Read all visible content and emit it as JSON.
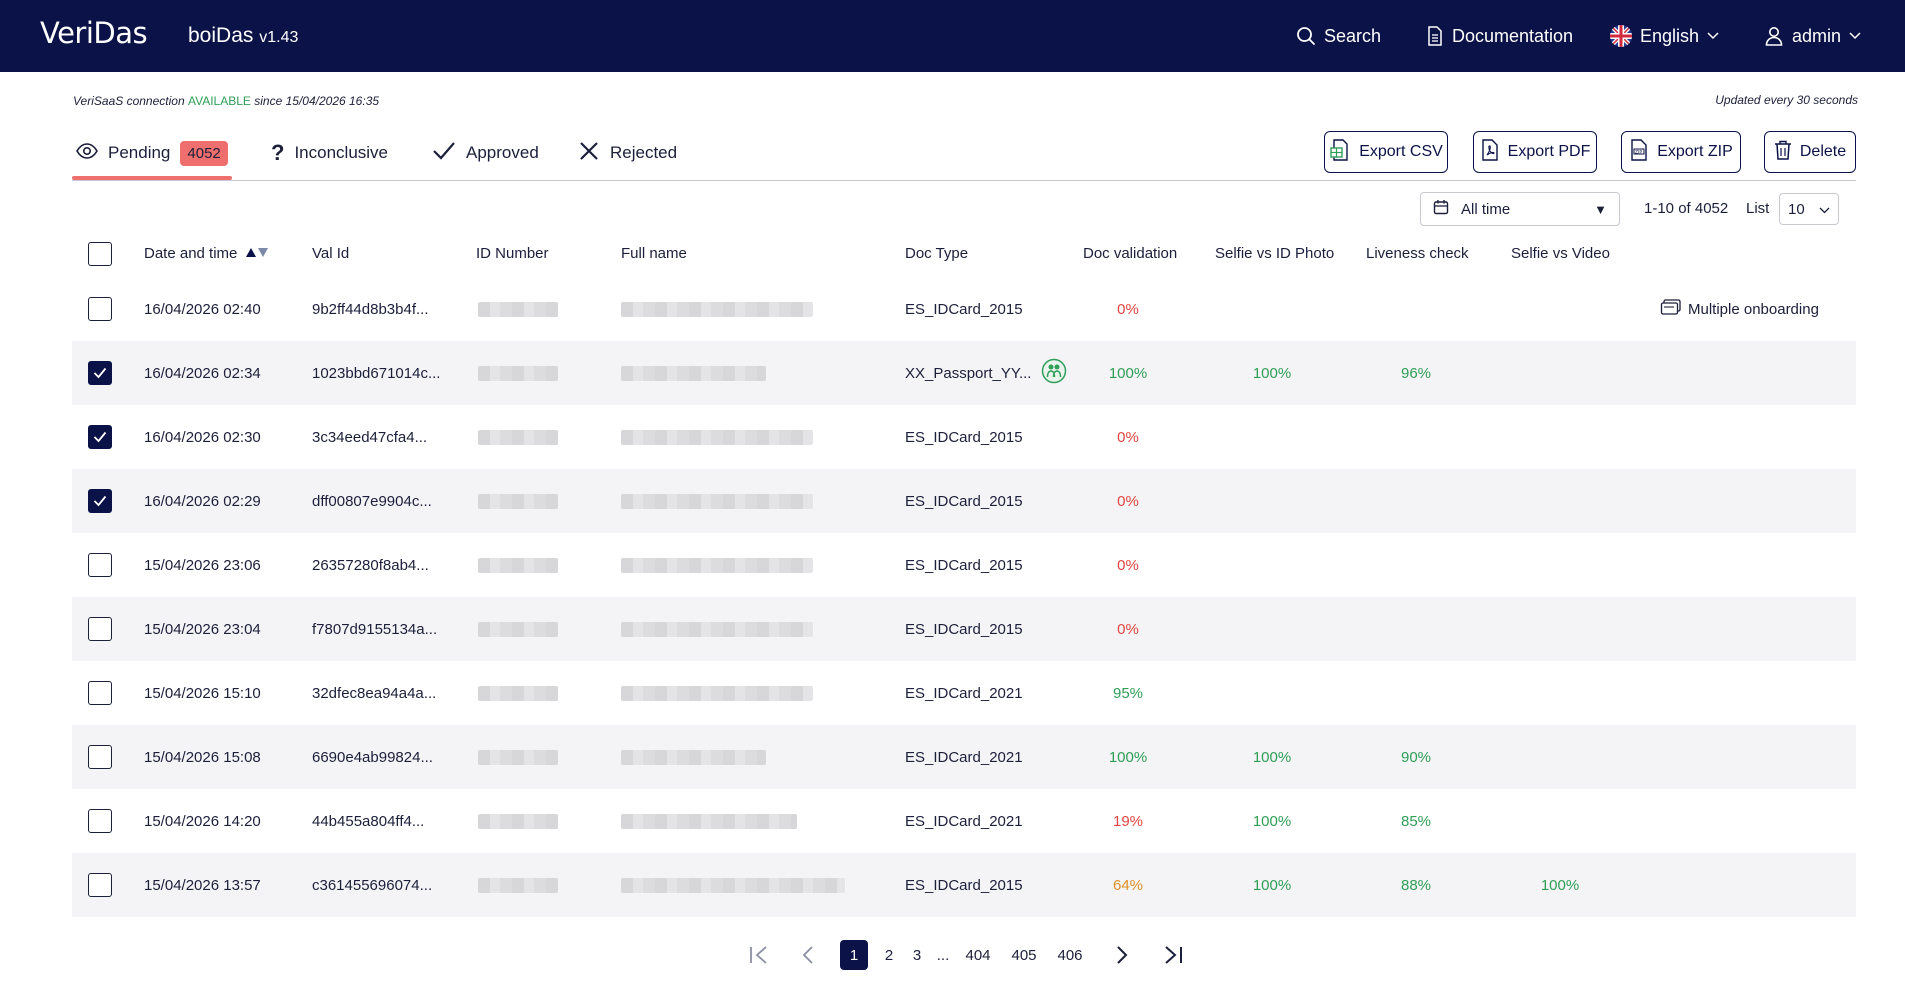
{
  "header": {
    "logo": "VeriDas",
    "app_name": "boiDas",
    "app_version": "v1.43",
    "nav": {
      "search": "Search",
      "documentation": "Documentation",
      "language": "English",
      "user": "admin"
    }
  },
  "status": {
    "prefix": "VeriSaaS connection",
    "state": "AVAILABLE",
    "since": "since 15/04/2026 16:35",
    "updated": "Updated every 30 seconds"
  },
  "tabs": [
    {
      "label": "Pending",
      "count": "4052",
      "icon": "eye-icon",
      "active": true
    },
    {
      "label": "Inconclusive",
      "icon": "question-icon"
    },
    {
      "label": "Approved",
      "icon": "check-icon"
    },
    {
      "label": "Rejected",
      "icon": "x-icon"
    }
  ],
  "actions": {
    "export_csv": "Export CSV",
    "export_pdf": "Export PDF",
    "export_zip": "Export ZIP",
    "delete": "Delete"
  },
  "filter": {
    "date_range": "All time",
    "range_text": "1-10 of 4052",
    "list_label": "List",
    "list_size": "10"
  },
  "columns": {
    "date": "Date and time",
    "val_id": "Val Id",
    "id_number": "ID Number",
    "full_name": "Full name",
    "doc_type": "Doc Type",
    "doc_validation": "Doc validation",
    "selfie_id": "Selfie vs ID Photo",
    "liveness": "Liveness check",
    "selfie_video": "Selfie vs Video"
  },
  "rows": [
    {
      "checked": false,
      "date": "16/04/2026 02:40",
      "val_id": "9b2ff44d8b3b4f...",
      "doc_type": "ES_IDCard_2015",
      "doc_validation": "0%",
      "selfie_id": "",
      "liveness": "",
      "selfie_video": "",
      "extra": "Multiple onboarding"
    },
    {
      "checked": true,
      "date": "16/04/2026 02:34",
      "val_id": "1023bbd671014c...",
      "doc_type": "XX_Passport_YY...",
      "doc_validation": "100%",
      "selfie_id": "100%",
      "liveness": "96%",
      "selfie_video": "",
      "extra": ""
    },
    {
      "checked": true,
      "date": "16/04/2026 02:30",
      "val_id": "3c34eed47cfa4...",
      "doc_type": "ES_IDCard_2015",
      "doc_validation": "0%",
      "selfie_id": "",
      "liveness": "",
      "selfie_video": "",
      "extra": ""
    },
    {
      "checked": true,
      "date": "16/04/2026 02:29",
      "val_id": "dff00807e9904c...",
      "doc_type": "ES_IDCard_2015",
      "doc_validation": "0%",
      "selfie_id": "",
      "liveness": "",
      "selfie_video": "",
      "extra": ""
    },
    {
      "checked": false,
      "date": "15/04/2026 23:06",
      "val_id": "26357280f8ab4...",
      "doc_type": "ES_IDCard_2015",
      "doc_validation": "0%",
      "selfie_id": "",
      "liveness": "",
      "selfie_video": "",
      "extra": ""
    },
    {
      "checked": false,
      "date": "15/04/2026 23:04",
      "val_id": "f7807d9155134a...",
      "doc_type": "ES_IDCard_2015",
      "doc_validation": "0%",
      "selfie_id": "",
      "liveness": "",
      "selfie_video": "",
      "extra": ""
    },
    {
      "checked": false,
      "date": "15/04/2026 15:10",
      "val_id": "32dfec8ea94a4a...",
      "doc_type": "ES_IDCard_2021",
      "doc_validation": "95%",
      "selfie_id": "",
      "liveness": "",
      "selfie_video": "",
      "extra": ""
    },
    {
      "checked": false,
      "date": "15/04/2026 15:08",
      "val_id": "6690e4ab99824...",
      "doc_type": "ES_IDCard_2021",
      "doc_validation": "100%",
      "selfie_id": "100%",
      "liveness": "90%",
      "selfie_video": "",
      "extra": ""
    },
    {
      "checked": false,
      "date": "15/04/2026 14:20",
      "val_id": "44b455a804ff4...",
      "doc_type": "ES_IDCard_2021",
      "doc_validation": "19%",
      "selfie_id": "100%",
      "liveness": "85%",
      "selfie_video": "",
      "extra": ""
    },
    {
      "checked": false,
      "date": "15/04/2026 13:57",
      "val_id": "c361455696074...",
      "doc_type": "ES_IDCard_2015",
      "doc_validation": "64%",
      "selfie_id": "100%",
      "liveness": "88%",
      "selfie_video": "100%",
      "extra": ""
    }
  ],
  "pagination": {
    "pages": [
      "1",
      "2",
      "3",
      "...",
      "404",
      "405",
      "406"
    ],
    "current": "1"
  },
  "colors": {
    "navy": "#0b1247",
    "accent": "#ef6f6f",
    "green": "#2f9e57",
    "red": "#e0453f",
    "orange": "#e0902a"
  }
}
